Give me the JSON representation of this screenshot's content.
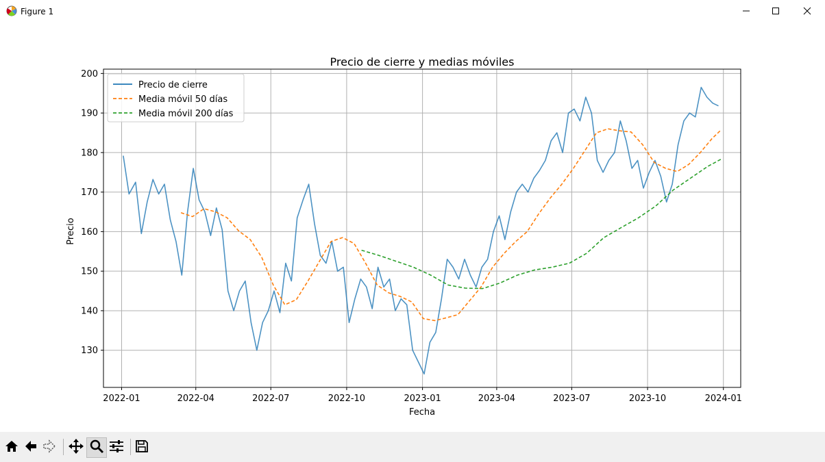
{
  "window": {
    "title": "Figure 1",
    "icons": [
      "matplotlib-icon",
      "minimize-icon",
      "maximize-icon",
      "close-icon"
    ]
  },
  "toolbar": {
    "buttons": [
      "home-icon",
      "back-icon",
      "forward-icon",
      "pan-icon",
      "zoom-icon",
      "configure-subplots-icon",
      "save-icon"
    ],
    "active": "zoom-icon"
  },
  "chart_data": {
    "type": "line",
    "title": "Precio de cierre y medias móviles",
    "xlabel": "Fecha",
    "ylabel": "Precio",
    "xlim": [
      "2021-12-10",
      "2024-01-22"
    ],
    "ylim": [
      120.6,
      201.1
    ],
    "x_ticks": [
      "2022-01",
      "2022-04",
      "2022-07",
      "2022-10",
      "2023-01",
      "2023-04",
      "2023-07",
      "2023-10",
      "2024-01"
    ],
    "y_ticks": [
      130,
      140,
      150,
      160,
      170,
      180,
      190,
      200
    ],
    "grid": true,
    "legend_position": "top-left",
    "series": [
      {
        "name": "Precio de cierre",
        "color": "#1f77b4",
        "style": "solid",
        "x": [
          "2022-01-03",
          "2022-01-10",
          "2022-01-18",
          "2022-01-25",
          "2022-02-01",
          "2022-02-08",
          "2022-02-15",
          "2022-02-22",
          "2022-03-01",
          "2022-03-08",
          "2022-03-15",
          "2022-03-22",
          "2022-03-29",
          "2022-04-05",
          "2022-04-12",
          "2022-04-19",
          "2022-04-26",
          "2022-05-03",
          "2022-05-10",
          "2022-05-17",
          "2022-05-24",
          "2022-05-31",
          "2022-06-07",
          "2022-06-14",
          "2022-06-21",
          "2022-06-28",
          "2022-07-05",
          "2022-07-12",
          "2022-07-19",
          "2022-07-26",
          "2022-08-02",
          "2022-08-09",
          "2022-08-16",
          "2022-08-23",
          "2022-08-30",
          "2022-09-06",
          "2022-09-13",
          "2022-09-20",
          "2022-09-27",
          "2022-10-04",
          "2022-10-11",
          "2022-10-18",
          "2022-10-25",
          "2022-11-01",
          "2022-11-08",
          "2022-11-15",
          "2022-11-22",
          "2022-11-29",
          "2022-12-06",
          "2022-12-13",
          "2022-12-20",
          "2022-12-27",
          "2023-01-03",
          "2023-01-10",
          "2023-01-17",
          "2023-01-24",
          "2023-01-31",
          "2023-02-07",
          "2023-02-14",
          "2023-02-21",
          "2023-02-28",
          "2023-03-07",
          "2023-03-14",
          "2023-03-21",
          "2023-03-28",
          "2023-04-04",
          "2023-04-11",
          "2023-04-18",
          "2023-04-25",
          "2023-05-02",
          "2023-05-09",
          "2023-05-16",
          "2023-05-23",
          "2023-05-30",
          "2023-06-06",
          "2023-06-13",
          "2023-06-20",
          "2023-06-27",
          "2023-07-04",
          "2023-07-11",
          "2023-07-18",
          "2023-07-25",
          "2023-08-01",
          "2023-08-08",
          "2023-08-15",
          "2023-08-22",
          "2023-08-29",
          "2023-09-05",
          "2023-09-12",
          "2023-09-19",
          "2023-09-26",
          "2023-10-03",
          "2023-10-10",
          "2023-10-17",
          "2023-10-24",
          "2023-10-31",
          "2023-11-07",
          "2023-11-14",
          "2023-11-21",
          "2023-11-28",
          "2023-12-05",
          "2023-12-12",
          "2023-12-19",
          "2023-12-26"
        ],
        "values": [
          179.2,
          169.5,
          172.5,
          159.5,
          167.5,
          173.2,
          169.5,
          172.0,
          163.0,
          157.5,
          149.0,
          165.0,
          176.0,
          168.0,
          165.0,
          159.0,
          166.0,
          160.5,
          145.0,
          140.0,
          145.0,
          147.5,
          137.0,
          130.0,
          137.0,
          140.0,
          145.0,
          139.5,
          152.0,
          147.5,
          163.5,
          168.0,
          172.0,
          162.0,
          154.0,
          152.0,
          157.5,
          150.0,
          151.0,
          137.0,
          143.0,
          148.0,
          146.0,
          140.5,
          151.0,
          146.0,
          148.0,
          140.0,
          143.0,
          141.5,
          130.0,
          127.0,
          124.0,
          132.0,
          134.5,
          143.0,
          153.0,
          151.0,
          148.0,
          153.0,
          149.0,
          146.0,
          151.0,
          153.0,
          160.0,
          164.0,
          158.0,
          165.0,
          170.0,
          172.0,
          170.0,
          173.5,
          175.5,
          178.0,
          183.0,
          185.0,
          180.0,
          190.0,
          191.0,
          188.0,
          194.0,
          190.0,
          178.0,
          175.0,
          178.0,
          180.0,
          188.0,
          183.0,
          176.0,
          178.0,
          171.0,
          175.0,
          178.0,
          174.0,
          167.5,
          172.0,
          182.0,
          188.0,
          190.0,
          189.0,
          196.5,
          194.0,
          192.5,
          191.8
        ]
      },
      {
        "name": "Media móvil 50 días",
        "color": "#ff7f0e",
        "style": "dashed",
        "x": [
          "2022-03-14",
          "2022-03-28",
          "2022-04-11",
          "2022-04-25",
          "2022-05-09",
          "2022-05-23",
          "2022-06-06",
          "2022-06-20",
          "2022-07-04",
          "2022-07-18",
          "2022-08-01",
          "2022-08-15",
          "2022-08-29",
          "2022-09-12",
          "2022-09-26",
          "2022-10-10",
          "2022-10-24",
          "2022-11-07",
          "2022-11-21",
          "2022-12-05",
          "2022-12-19",
          "2023-01-02",
          "2023-01-16",
          "2023-01-30",
          "2023-02-13",
          "2023-02-27",
          "2023-03-13",
          "2023-03-27",
          "2023-04-10",
          "2023-04-24",
          "2023-05-08",
          "2023-05-22",
          "2023-06-05",
          "2023-06-19",
          "2023-07-03",
          "2023-07-17",
          "2023-07-31",
          "2023-08-14",
          "2023-08-28",
          "2023-09-11",
          "2023-09-25",
          "2023-10-09",
          "2023-10-23",
          "2023-11-06",
          "2023-11-20",
          "2023-12-04",
          "2023-12-18",
          "2023-12-29"
        ],
        "values": [
          164.8,
          163.8,
          165.8,
          165.0,
          163.5,
          160.2,
          158.0,
          153.5,
          146.5,
          141.5,
          142.8,
          147.5,
          152.5,
          157.5,
          158.5,
          157.0,
          152.0,
          146.5,
          144.5,
          143.6,
          142.2,
          138.0,
          137.5,
          138.2,
          139.0,
          142.5,
          146.0,
          151.0,
          154.5,
          157.5,
          160.0,
          164.5,
          168.5,
          172.0,
          176.0,
          180.5,
          185.0,
          186.0,
          185.5,
          185.2,
          182.0,
          177.5,
          176.0,
          175.2,
          177.0,
          180.0,
          183.5,
          185.7
        ]
      },
      {
        "name": "Media móvil 200 días",
        "color": "#2ca02c",
        "style": "dashed",
        "x": [
          "2022-10-19",
          "2022-11-09",
          "2022-11-30",
          "2022-12-21",
          "2023-01-11",
          "2023-02-01",
          "2023-02-22",
          "2023-03-15",
          "2023-04-05",
          "2023-04-26",
          "2023-05-17",
          "2023-06-07",
          "2023-06-28",
          "2023-07-19",
          "2023-08-09",
          "2023-08-30",
          "2023-09-20",
          "2023-10-11",
          "2023-11-01",
          "2023-11-22",
          "2023-12-13",
          "2023-12-29"
        ],
        "values": [
          155.3,
          154.0,
          152.5,
          151.0,
          149.0,
          146.5,
          145.7,
          145.6,
          147.0,
          149.0,
          150.3,
          151.0,
          152.0,
          154.5,
          158.5,
          161.0,
          163.5,
          166.5,
          170.5,
          173.5,
          176.5,
          178.3
        ]
      }
    ]
  }
}
